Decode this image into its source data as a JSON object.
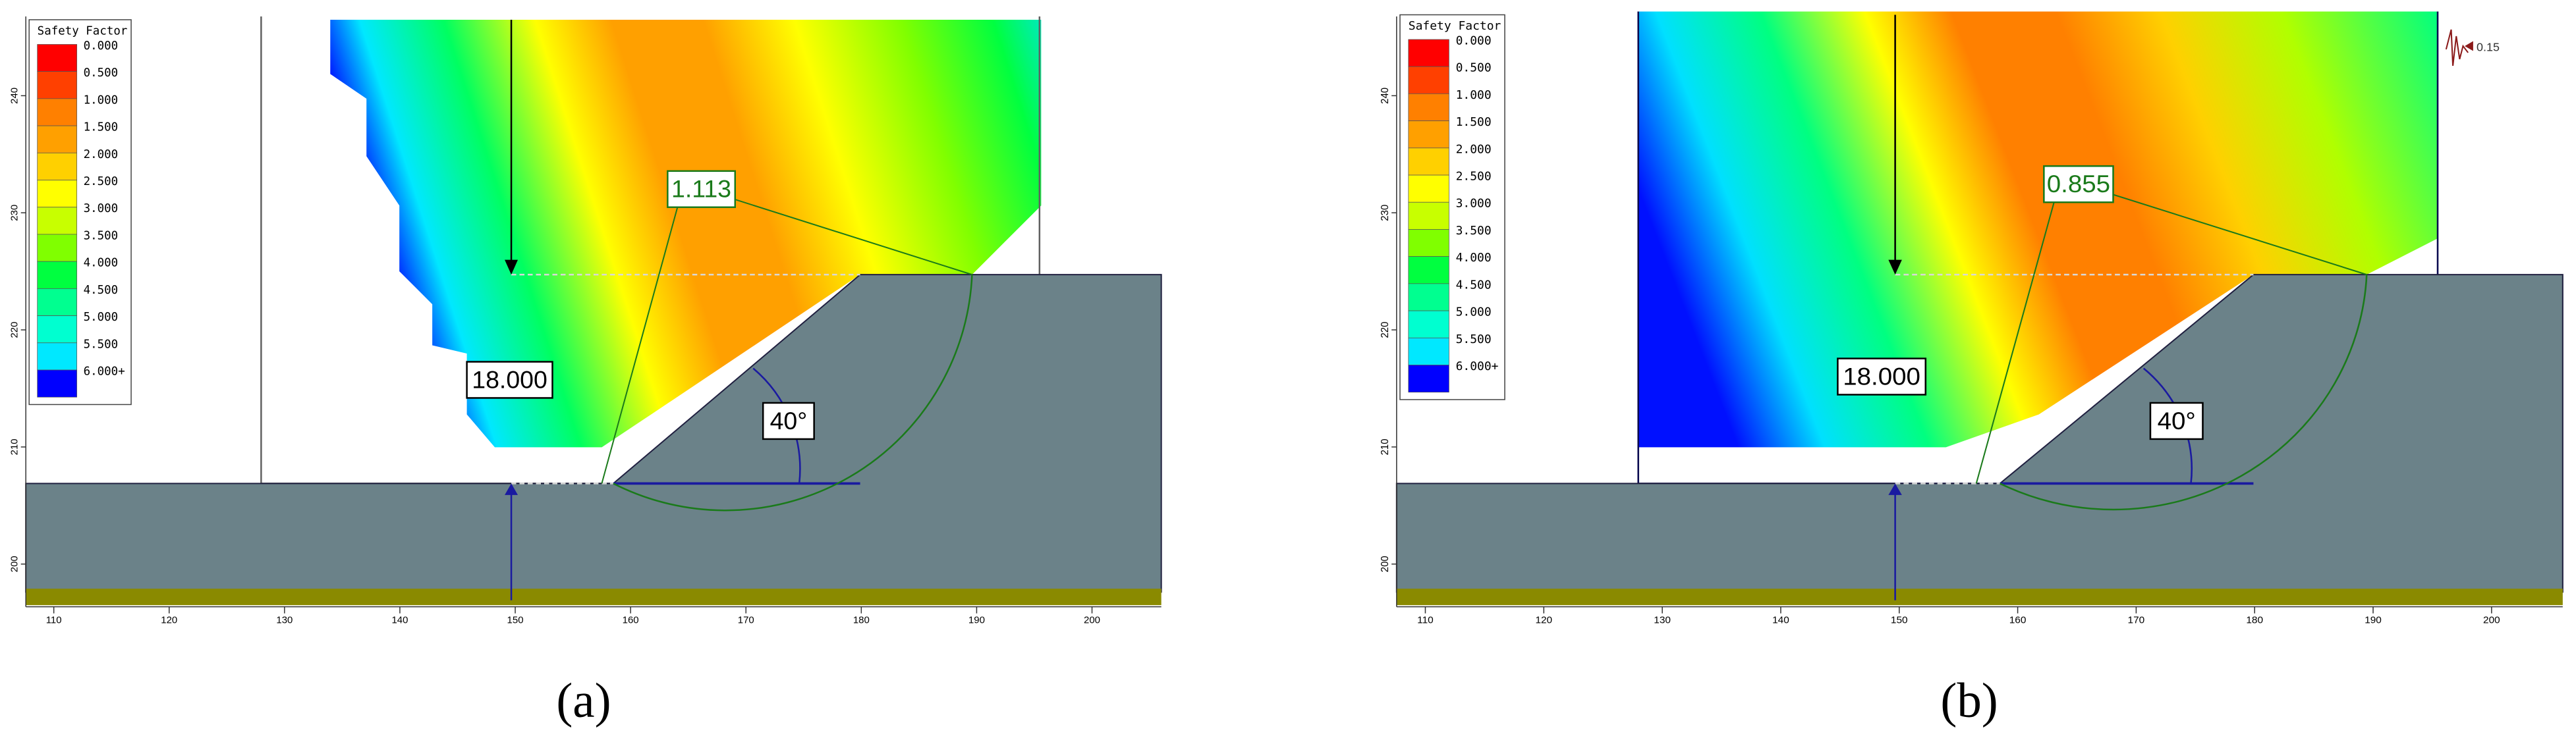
{
  "panels": [
    {
      "legend_title": "Safety Factor",
      "legend_labels": [
        "0.000",
        "0.500",
        "1.000",
        "1.500",
        "2.000",
        "2.500",
        "3.000",
        "3.500",
        "4.000",
        "4.500",
        "5.000",
        "5.500",
        "6.000+"
      ],
      "fs_label": "1.113",
      "distance_label": "18.000",
      "angle_label": "40°",
      "x_ticks": [
        110,
        120,
        130,
        140,
        150,
        160,
        170,
        180,
        190,
        200
      ],
      "y_ticks": [
        200,
        210,
        220,
        230,
        240
      ],
      "caption": "(a)"
    },
    {
      "legend_title": "Safety Factor",
      "legend_labels": [
        "0.000",
        "0.500",
        "1.000",
        "1.500",
        "2.000",
        "2.500",
        "3.000",
        "3.500",
        "4.000",
        "4.500",
        "5.000",
        "5.500",
        "6.000+"
      ],
      "fs_label": "0.855",
      "distance_label": "18.000",
      "angle_label": "40°",
      "x_ticks": [
        110,
        120,
        130,
        140,
        150,
        160,
        170,
        180,
        190,
        200
      ],
      "y_ticks": [
        200,
        210,
        220,
        230,
        240
      ],
      "caption": "(b)",
      "scale_label": "0.15"
    }
  ]
}
